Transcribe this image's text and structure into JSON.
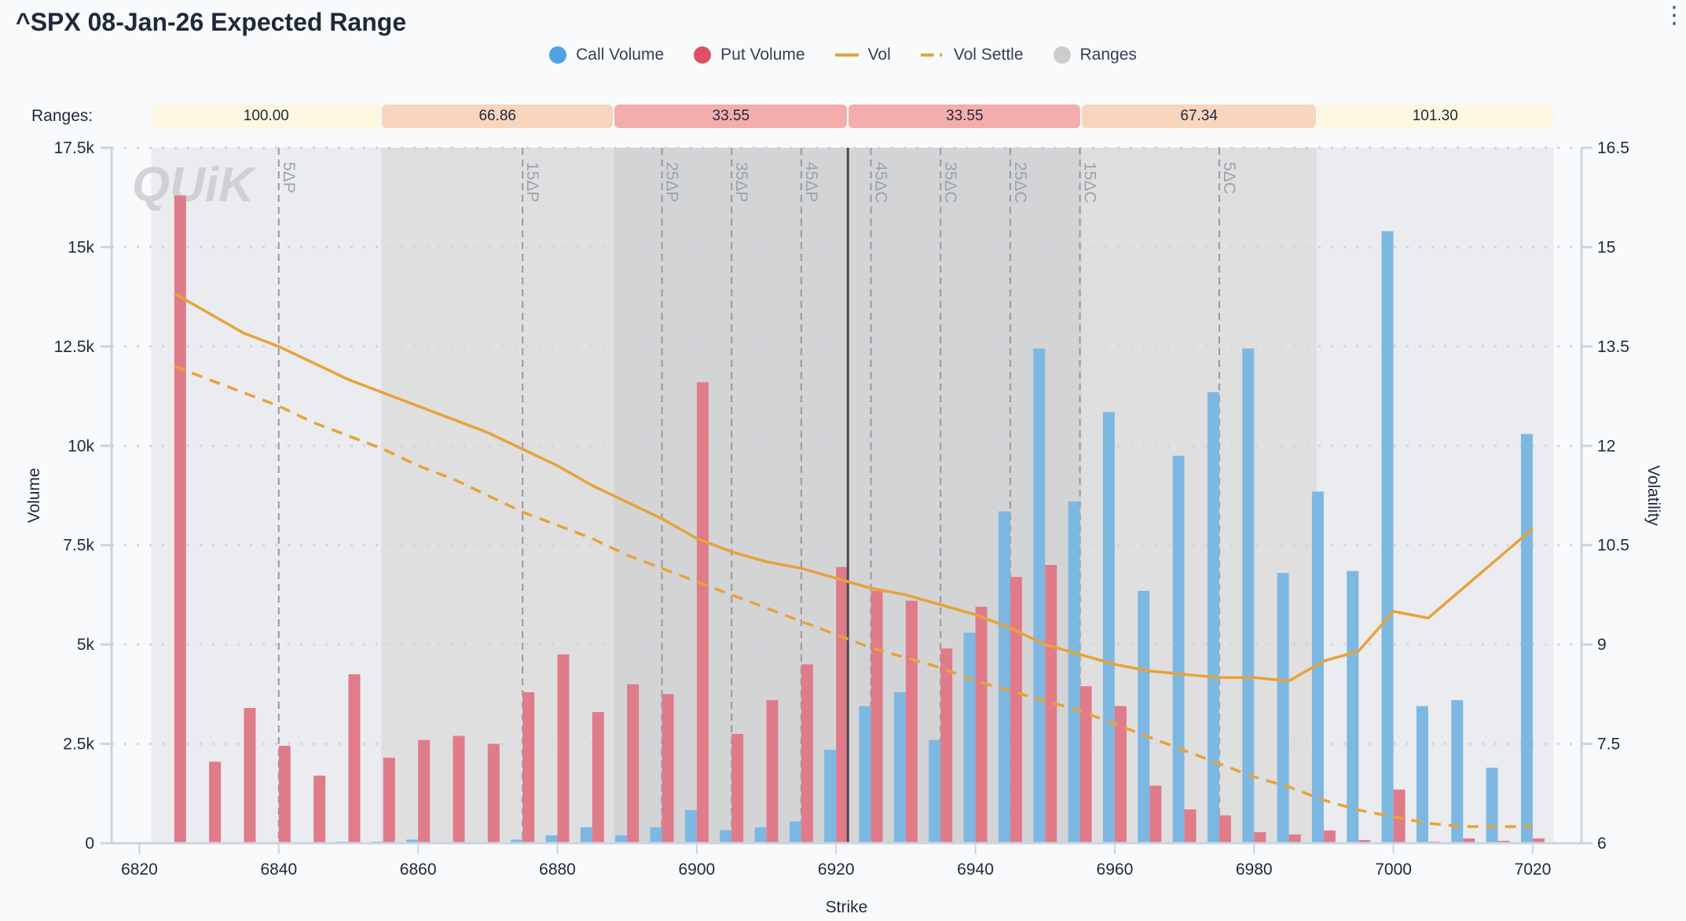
{
  "header": {
    "title": "^SPX 08-Jan-26 Expected Range",
    "menu_icon": "more-vertical-icon"
  },
  "legend": [
    {
      "label": "Call Volume",
      "color": "#4ba3e3",
      "shape": "circle"
    },
    {
      "label": "Put Volume",
      "color": "#e05064",
      "shape": "circle"
    },
    {
      "label": "Vol",
      "color": "#e8a23a",
      "shape": "line"
    },
    {
      "label": "Vol Settle",
      "color": "#e8a23a",
      "shape": "dashed-line"
    },
    {
      "label": "Ranges",
      "color": "#cccccc",
      "shape": "circle"
    }
  ],
  "ranges": {
    "label": "Ranges:",
    "items": [
      {
        "value": "100.00",
        "from": 6821.7,
        "to": 6854.7,
        "color": "#fef7e0"
      },
      {
        "value": "66.86",
        "from": 6854.7,
        "to": 6888.1,
        "color": "#f8d5bd"
      },
      {
        "value": "33.55",
        "from": 6888.1,
        "to": 6921.7,
        "color": "#f3aeac"
      },
      {
        "value": "33.55",
        "from": 6921.7,
        "to": 6955.2,
        "color": "#f3aeac"
      },
      {
        "value": "67.34",
        "from": 6955.2,
        "to": 6989.0,
        "color": "#f8d5bd"
      },
      {
        "value": "101.30",
        "from": 6989.0,
        "to": 7023.0,
        "color": "#fef7e0"
      }
    ]
  },
  "chart_data": {
    "type": "bar",
    "title": "^SPX 08-Jan-26 Expected Range",
    "xlabel": "Strike",
    "ylabel": "Volume",
    "y2label": "Volatility",
    "xlim": [
      6816,
      7027
    ],
    "ylim": [
      0,
      17500
    ],
    "y2lim": [
      6,
      16.5
    ],
    "x_ticks": [
      6820,
      6840,
      6860,
      6880,
      6900,
      6920,
      6940,
      6960,
      6980,
      7000,
      7020
    ],
    "y_ticks": [
      {
        "v": 0,
        "label": "0"
      },
      {
        "v": 2500,
        "label": "2.5k"
      },
      {
        "v": 5000,
        "label": "5k"
      },
      {
        "v": 7500,
        "label": "7.5k"
      },
      {
        "v": 10000,
        "label": "10k"
      },
      {
        "v": 12500,
        "label": "12.5k"
      },
      {
        "v": 15000,
        "label": "15k"
      },
      {
        "v": 17500,
        "label": "17.5k"
      }
    ],
    "y2_ticks": [
      {
        "v": 6,
        "label": "6"
      },
      {
        "v": 7.5,
        "label": "7.5"
      },
      {
        "v": 9,
        "label": "9"
      },
      {
        "v": 10.5,
        "label": "10.5"
      },
      {
        "v": 12,
        "label": "12"
      },
      {
        "v": 13.5,
        "label": "13.5"
      },
      {
        "v": 15,
        "label": "15"
      },
      {
        "v": 16.5,
        "label": "16.5"
      }
    ],
    "strikes": [
      6825,
      6830,
      6835,
      6840,
      6845,
      6850,
      6855,
      6860,
      6865,
      6870,
      6875,
      6880,
      6885,
      6890,
      6895,
      6900,
      6905,
      6910,
      6915,
      6920,
      6925,
      6930,
      6935,
      6940,
      6945,
      6950,
      6955,
      6960,
      6965,
      6970,
      6975,
      6980,
      6985,
      6990,
      6995,
      7000,
      7005,
      7010,
      7015,
      7020
    ],
    "series": [
      {
        "name": "Call Volume",
        "color": "#7db8e3",
        "values": [
          0,
          0,
          0,
          30,
          0,
          40,
          40,
          90,
          0,
          0,
          90,
          200,
          400,
          200,
          400,
          830,
          330,
          400,
          550,
          2350,
          3450,
          3800,
          2600,
          5300,
          8350,
          12450,
          8600,
          10850,
          6350,
          9750,
          11350,
          12450,
          6800,
          8850,
          6850,
          15400,
          3450,
          3600,
          1900,
          10300
        ]
      },
      {
        "name": "Put Volume",
        "color": "#e07b8a",
        "values": [
          16300,
          2050,
          3400,
          2450,
          1700,
          4250,
          2150,
          2600,
          2700,
          2500,
          3800,
          4750,
          3300,
          4000,
          3750,
          11600,
          2750,
          3600,
          4500,
          6950,
          6350,
          6100,
          4900,
          5950,
          6700,
          7000,
          3950,
          3450,
          1450,
          850,
          700,
          280,
          220,
          320,
          80,
          1350,
          40,
          120,
          60,
          120
        ]
      }
    ],
    "lines": [
      {
        "name": "Vol",
        "color": "#e8a23a",
        "style": "solid",
        "x": [
          6825,
          6830,
          6835,
          6840,
          6845,
          6850,
          6855,
          6860,
          6865,
          6870,
          6875,
          6880,
          6885,
          6890,
          6895,
          6900,
          6905,
          6910,
          6915,
          6920,
          6925,
          6930,
          6935,
          6940,
          6945,
          6950,
          6955,
          6960,
          6965,
          6970,
          6975,
          6980,
          6985,
          6990,
          6995,
          7000,
          7005,
          7010,
          7015,
          7020
        ],
        "y": [
          14.3,
          14.0,
          13.7,
          13.5,
          13.25,
          13.0,
          12.8,
          12.6,
          12.4,
          12.2,
          11.95,
          11.7,
          11.4,
          11.15,
          10.9,
          10.6,
          10.4,
          10.25,
          10.15,
          10.0,
          9.85,
          9.75,
          9.6,
          9.45,
          9.25,
          9.0,
          8.85,
          8.7,
          8.6,
          8.55,
          8.5,
          8.5,
          8.45,
          8.75,
          8.9,
          9.5,
          9.4,
          9.85,
          10.3,
          10.75
        ]
      },
      {
        "name": "Vol Settle",
        "color": "#e8a23a",
        "style": "dashed",
        "x": [
          6825,
          6830,
          6835,
          6840,
          6845,
          6850,
          6855,
          6860,
          6865,
          6870,
          6875,
          6880,
          6885,
          6890,
          6895,
          6900,
          6905,
          6910,
          6915,
          6920,
          6925,
          6930,
          6935,
          6940,
          6945,
          6950,
          6955,
          6960,
          6965,
          6970,
          6975,
          6980,
          6985,
          6990,
          6995,
          7000,
          7005,
          7010,
          7015,
          7020
        ],
        "y": [
          13.2,
          13.0,
          12.8,
          12.6,
          12.35,
          12.15,
          11.95,
          11.7,
          11.5,
          11.25,
          11.0,
          10.8,
          10.6,
          10.35,
          10.15,
          9.95,
          9.75,
          9.55,
          9.35,
          9.15,
          8.95,
          8.8,
          8.65,
          8.45,
          8.3,
          8.15,
          8.0,
          7.8,
          7.6,
          7.4,
          7.2,
          7.0,
          6.85,
          6.65,
          6.5,
          6.4,
          6.3,
          6.25,
          6.25,
          6.25
        ]
      }
    ],
    "delta_lines": [
      {
        "label": "5ΔP",
        "x": 6840.0
      },
      {
        "label": "15ΔP",
        "x": 6875.0
      },
      {
        "label": "25ΔP",
        "x": 6895.0
      },
      {
        "label": "35ΔP",
        "x": 6905.0
      },
      {
        "label": "45ΔP",
        "x": 6915.0
      },
      {
        "label": "45ΔC",
        "x": 6925.0
      },
      {
        "label": "35ΔC",
        "x": 6935.0
      },
      {
        "label": "25ΔC",
        "x": 6945.0
      },
      {
        "label": "15ΔC",
        "x": 6955.0
      },
      {
        "label": "5ΔC",
        "x": 6975.0
      }
    ],
    "spot": 6921.7,
    "zones": [
      {
        "from": 6821.7,
        "to": 7023.0,
        "color": "#ebecef"
      },
      {
        "from": 6854.7,
        "to": 6989.0,
        "color": "#dfdfe0"
      },
      {
        "from": 6888.1,
        "to": 6955.2,
        "color": "#d3d4d6"
      }
    ],
    "watermark": "QUiK",
    "grid": true,
    "legend_position": "top-center"
  }
}
